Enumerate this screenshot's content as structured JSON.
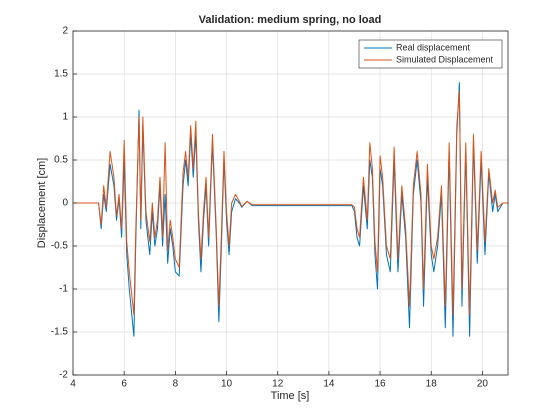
{
  "chart_data": {
    "type": "line",
    "title": "Validation: medium spring, no load",
    "xlabel": "Time [s]",
    "ylabel": "Displacement [cm]",
    "x": [
      4,
      5,
      5.1,
      5.2,
      5.3,
      5.45,
      5.6,
      5.7,
      5.8,
      5.9,
      6,
      6.1,
      6.2,
      6.38,
      6.45,
      6.58,
      6.65,
      6.73,
      6.85,
      7,
      7.1,
      7.2,
      7.3,
      7.4,
      7.5,
      7.6,
      7.7,
      7.8,
      7.9,
      8,
      8.15,
      8.3,
      8.4,
      8.5,
      8.6,
      8.7,
      8.8,
      8.9,
      9,
      9.1,
      9.2,
      9.3,
      9.45,
      9.6,
      9.7,
      9.8,
      9.9,
      10,
      10.1,
      10.2,
      10.35,
      10.5,
      10.6,
      10.8,
      11,
      14.9,
      15,
      15.1,
      15.2,
      15.35,
      15.5,
      15.6,
      15.7,
      15.8,
      15.9,
      16,
      16.1,
      16.25,
      16.4,
      16.55,
      16.7,
      16.85,
      17,
      17.15,
      17.3,
      17.45,
      17.6,
      17.7,
      17.85,
      18,
      18.1,
      18.25,
      18.4,
      18.55,
      18.7,
      18.85,
      19,
      19.1,
      19.2,
      19.35,
      19.5,
      19.65,
      19.8,
      19.95,
      20.1,
      20.25,
      20.4,
      20.5,
      20.6,
      20.8,
      21
    ],
    "series": [
      {
        "name": "Real displacement",
        "color": "#0072BD",
        "values": [
          0,
          0,
          -0.3,
          0.1,
          -0.1,
          0.45,
          0.2,
          -0.2,
          0.05,
          -0.4,
          0.5,
          -0.6,
          -1.0,
          -1.55,
          -0.5,
          1.08,
          -0.3,
          0.9,
          -0.2,
          -0.6,
          -0.1,
          -0.5,
          -0.3,
          0.2,
          -0.5,
          0.1,
          -0.7,
          -0.3,
          -0.5,
          -0.8,
          -0.85,
          0.2,
          0.5,
          0.2,
          0.8,
          0.3,
          0.8,
          -0.2,
          -0.8,
          -0.2,
          0.2,
          -0.5,
          0.7,
          -0.4,
          -1.38,
          -0.5,
          0.5,
          -0.2,
          -0.6,
          -0.1,
          0.05,
          0,
          -0.05,
          0.02,
          -0.03,
          -0.03,
          -0.1,
          -0.4,
          -0.5,
          0.2,
          -0.3,
          0.5,
          0.3,
          -0.6,
          -1.0,
          0.4,
          0.2,
          -0.6,
          -0.8,
          0.5,
          -0.8,
          0.1,
          -0.4,
          -1.45,
          0.1,
          0.5,
          0,
          -1.2,
          0.3,
          -0.6,
          -0.8,
          -0.5,
          0.1,
          -1.45,
          0.6,
          -1.55,
          0.8,
          1.4,
          -1.2,
          0.6,
          -1.55,
          0.7,
          -0.7,
          0.5,
          -0.6,
          0.35,
          -0.1,
          0.1,
          -0.1,
          0,
          0
        ]
      },
      {
        "name": "Simulated Displacement",
        "color": "#D95319",
        "values": [
          0,
          0,
          -0.25,
          0.2,
          -0.05,
          0.6,
          0.3,
          -0.15,
          0.1,
          -0.3,
          0.73,
          -0.45,
          -0.8,
          -1.3,
          -0.35,
          1.0,
          -0.2,
          1.0,
          -0.1,
          -0.45,
          0.0,
          -0.4,
          -0.2,
          0.3,
          -0.4,
          0.7,
          -0.55,
          -0.2,
          -0.4,
          -0.65,
          -0.75,
          0.35,
          0.6,
          0.3,
          0.9,
          0.4,
          0.95,
          -0.1,
          -0.65,
          -0.1,
          0.3,
          -0.4,
          0.8,
          -0.3,
          -1.2,
          -0.35,
          0.6,
          -0.1,
          -0.5,
          0.0,
          0.1,
          0.02,
          -0.04,
          0.02,
          -0.02,
          -0.02,
          -0.05,
          -0.3,
          -0.4,
          0.3,
          -0.2,
          0.7,
          0.4,
          -0.45,
          -0.8,
          0.55,
          0.3,
          -0.5,
          -0.65,
          0.65,
          -0.65,
          0.2,
          -0.3,
          -1.2,
          0.2,
          0.6,
          0.1,
          -1.0,
          0.45,
          -0.5,
          -0.65,
          -0.4,
          0.2,
          -1.2,
          0.7,
          -1.3,
          0.9,
          1.3,
          -1.0,
          0.7,
          -1.3,
          0.8,
          -0.55,
          0.6,
          -0.45,
          0.4,
          0.0,
          0.15,
          -0.05,
          0.0,
          0
        ]
      }
    ],
    "xlim": [
      4,
      21
    ],
    "ylim": [
      -2,
      2
    ],
    "xticks": [
      4,
      6,
      8,
      10,
      12,
      14,
      16,
      18,
      20
    ],
    "yticks": [
      -2,
      -1.5,
      -1,
      -0.5,
      0,
      0.5,
      1,
      1.5,
      2
    ],
    "grid": true,
    "legend": "northeast"
  }
}
